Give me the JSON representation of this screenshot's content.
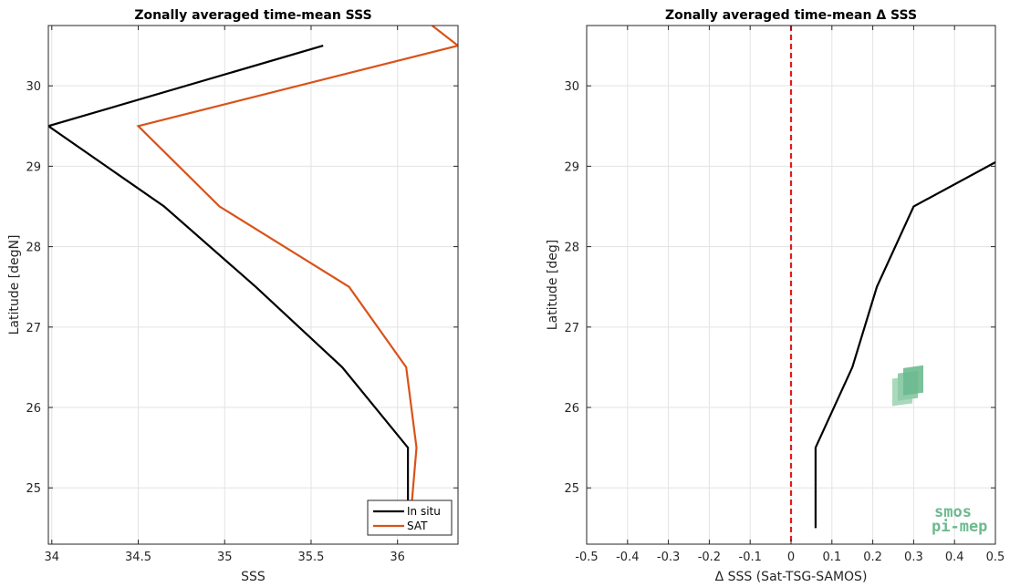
{
  "chart_data": [
    {
      "type": "line",
      "title": "Zonally averaged time-mean SSS",
      "xlabel": "SSS",
      "ylabel": "Latitude [degN]",
      "xlim": [
        33.98,
        36.35
      ],
      "ylim": [
        24.3,
        30.75
      ],
      "xticks": [
        34,
        34.5,
        35,
        35.5,
        36
      ],
      "xtick_labels": [
        "34",
        "34.5",
        "35",
        "35.5",
        "36"
      ],
      "yticks": [
        25,
        26,
        27,
        28,
        29,
        30
      ],
      "ytick_labels": [
        "25",
        "26",
        "27",
        "28",
        "29",
        "30"
      ],
      "grid": true,
      "legend_position": "bottom-right",
      "series": [
        {
          "name": "In situ",
          "color": "#000000",
          "points": [
            {
              "x": 35.57,
              "y": 30.5
            },
            {
              "x": 33.98,
              "y": 29.5
            },
            {
              "x": 34.65,
              "y": 28.5
            },
            {
              "x": 35.18,
              "y": 27.5
            },
            {
              "x": 35.68,
              "y": 26.5
            },
            {
              "x": 36.06,
              "y": 25.5
            },
            {
              "x": 36.06,
              "y": 24.5
            }
          ]
        },
        {
          "name": "SAT",
          "color": "#D95319",
          "points": [
            {
              "x": 36.2,
              "y": 30.75
            },
            {
              "x": 36.35,
              "y": 30.5
            },
            {
              "x": 34.5,
              "y": 29.5
            },
            {
              "x": 34.97,
              "y": 28.5
            },
            {
              "x": 35.72,
              "y": 27.5
            },
            {
              "x": 36.05,
              "y": 26.5
            },
            {
              "x": 36.11,
              "y": 25.5
            },
            {
              "x": 36.07,
              "y": 24.5
            }
          ]
        }
      ]
    },
    {
      "type": "line",
      "title": "Zonally averaged time-mean Δ SSS",
      "xlabel": "Δ SSS (Sat-TSG-SAMOS)",
      "ylabel": "Latitude [deg]",
      "xlim": [
        -0.5,
        0.5
      ],
      "ylim": [
        24.3,
        30.75
      ],
      "xticks": [
        -0.5,
        -0.4,
        -0.3,
        -0.2,
        -0.1,
        0,
        0.1,
        0.2,
        0.3,
        0.4,
        0.5
      ],
      "xtick_labels": [
        "-0.5",
        "-0.4",
        "-0.3",
        "-0.2",
        "-0.1",
        "0",
        "0.1",
        "0.2",
        "0.3",
        "0.4",
        "0.5"
      ],
      "yticks": [
        25,
        26,
        27,
        28,
        29,
        30
      ],
      "ytick_labels": [
        "25",
        "26",
        "27",
        "28",
        "29",
        "30"
      ],
      "grid": true,
      "reference_line": {
        "x": 0,
        "color": "#e41a1c",
        "style": "dashed"
      },
      "series": [
        {
          "color": "#000000",
          "points": [
            {
              "x": 0.5,
              "y": 29.05
            },
            {
              "x": 0.3,
              "y": 28.5
            },
            {
              "x": 0.21,
              "y": 27.5
            },
            {
              "x": 0.15,
              "y": 26.5
            },
            {
              "x": 0.06,
              "y": 25.5
            },
            {
              "x": 0.06,
              "y": 24.5
            }
          ]
        }
      ]
    }
  ],
  "logo": {
    "line1": "smos",
    "line2": "pi-mep",
    "color": "#6dba8f"
  }
}
